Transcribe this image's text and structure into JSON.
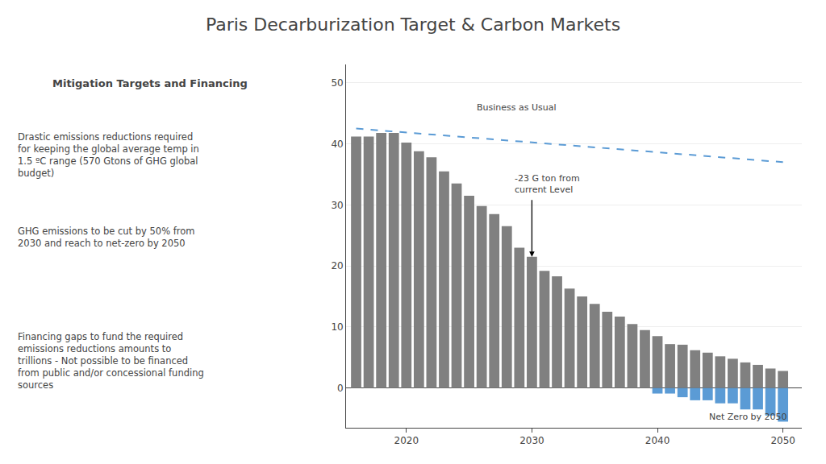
{
  "chart_data": {
    "type": "bar",
    "title": "Paris Decarburization Target & Carbon Markets",
    "subtitle": "Mitigation Targets and Financing",
    "x": [
      2016,
      2017,
      2018,
      2019,
      2020,
      2021,
      2022,
      2023,
      2024,
      2025,
      2026,
      2027,
      2028,
      2029,
      2030,
      2031,
      2032,
      2033,
      2034,
      2035,
      2036,
      2037,
      2038,
      2039,
      2040,
      2041,
      2042,
      2043,
      2044,
      2045,
      2046,
      2047,
      2048,
      2049,
      2050
    ],
    "series": [
      {
        "type": "bar",
        "color": "#808080",
        "values": [
          41.2,
          41.2,
          41.8,
          41.8,
          40.2,
          38.8,
          37.8,
          35.5,
          33.5,
          31.5,
          29.8,
          28.5,
          26.5,
          23.0,
          21.5,
          19.2,
          18.3,
          16.3,
          15.0,
          13.8,
          12.5,
          11.7,
          10.5,
          9.5,
          8.5,
          7.2,
          7.1,
          6.2,
          5.8,
          5.2,
          4.8,
          4.2,
          3.8,
          3.2,
          2.8
        ]
      },
      {
        "type": "bar",
        "color": "#5B9BD5",
        "values": [
          0,
          0,
          0,
          0,
          0,
          0,
          0,
          0,
          0,
          0,
          0,
          0,
          0,
          0,
          0,
          0,
          0,
          0,
          0,
          0,
          0,
          0,
          0,
          0,
          -0.9,
          -0.9,
          -1.5,
          -2.0,
          -2.0,
          -2.5,
          -2.5,
          -3.5,
          -3.5,
          -4.5,
          -5.5
        ]
      },
      {
        "type": "line",
        "color": "#5B9BD5",
        "line_style": "dash",
        "x": [
          2016,
          2050
        ],
        "values": [
          42.5,
          37.0
        ]
      }
    ],
    "stacked": true,
    "xlim": [
      2015.2,
      2051.5
    ],
    "xticks": [
      2020,
      2030,
      2040,
      2050
    ],
    "ylim": [
      -6.5,
      53
    ],
    "yticks": [
      0,
      10,
      20,
      30,
      40,
      50
    ],
    "grid": "y",
    "annotations": [
      {
        "text": "Drastic emissions reductions required\nfor keeping the global average temp in\n1.5 ºC range (570 Gtons of GHG global\nbudget)"
      },
      {
        "text": "GHG emissions to be cut by 50% from\n2030 and reach to net-zero by 2050"
      },
      {
        "text": "Financing gaps to fund the required\nemissions reductions amounts to\ntrillions - Not possible to be financed\nfrom public and/or concessional funding\nsources"
      },
      {
        "text": "Business as Usual",
        "x": 2025.5,
        "y": 44.8
      },
      {
        "text": "-23 G ton from\ncurrent Level",
        "x": 2028.5,
        "y": 35.5,
        "arrow": {
          "x": 2030,
          "from_y": 31.0,
          "to_y": 21.5
        }
      },
      {
        "text": "Net Zero by 2050",
        "x": 2050.5,
        "y": -5.8
      }
    ]
  }
}
